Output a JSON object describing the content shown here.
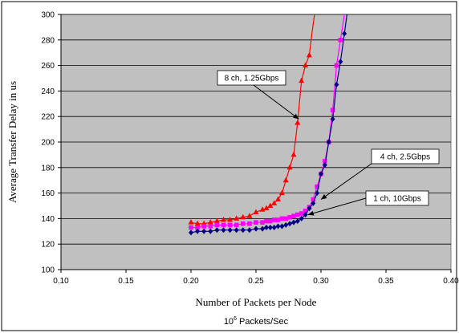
{
  "chart_data": {
    "type": "line",
    "title": "",
    "xlabel": "Number of Packets per Node",
    "ylabel": "Average Transfer Delay  in us",
    "x_units": {
      "base": "10",
      "exponent": "6",
      "rest": " Packets/Sec"
    },
    "xlim": [
      0.1,
      0.4
    ],
    "ylim": [
      100,
      300
    ],
    "x_ticks": [
      "0.10",
      "0.15",
      "0.20",
      "0.25",
      "0.30",
      "0.35",
      "0.40"
    ],
    "y_ticks": [
      "100",
      "120",
      "140",
      "160",
      "180",
      "200",
      "220",
      "240",
      "260",
      "280",
      "300"
    ],
    "grid": "horizontal",
    "plot_background": "#c0c0c0",
    "series": [
      {
        "name": "8 ch, 1.25Gbps",
        "color": "#ff0000",
        "marker": "triangle",
        "x": [
          0.2,
          0.205,
          0.21,
          0.215,
          0.22,
          0.225,
          0.23,
          0.235,
          0.24,
          0.245,
          0.25,
          0.255,
          0.258,
          0.261,
          0.264,
          0.267,
          0.27,
          0.273,
          0.276,
          0.279,
          0.282,
          0.285,
          0.288,
          0.291
        ],
        "y": [
          137,
          136,
          136,
          137,
          138,
          139,
          139,
          140,
          141,
          142,
          145,
          147,
          148,
          150,
          152,
          155,
          160,
          170,
          180,
          190,
          215,
          248,
          260,
          268
        ],
        "line_x": [
          0.2,
          0.205,
          0.21,
          0.215,
          0.22,
          0.225,
          0.23,
          0.235,
          0.24,
          0.245,
          0.25,
          0.255,
          0.258,
          0.261,
          0.264,
          0.267,
          0.27,
          0.273,
          0.276,
          0.279,
          0.282,
          0.285,
          0.288,
          0.291,
          0.293,
          0.295
        ],
        "line_y": [
          137,
          136,
          136,
          137,
          138,
          139,
          139,
          140,
          141,
          142,
          145,
          147,
          148,
          150,
          152,
          155,
          160,
          170,
          180,
          190,
          215,
          248,
          260,
          268,
          285,
          300
        ]
      },
      {
        "name": "4 ch, 2.5Gbps",
        "color": "#ff00ff",
        "marker": "square",
        "x": [
          0.2,
          0.205,
          0.21,
          0.215,
          0.22,
          0.225,
          0.23,
          0.235,
          0.24,
          0.245,
          0.25,
          0.255,
          0.258,
          0.261,
          0.264,
          0.267,
          0.27,
          0.273,
          0.276,
          0.279,
          0.282,
          0.285,
          0.288,
          0.291,
          0.294,
          0.297,
          0.3,
          0.303,
          0.306,
          0.309,
          0.312,
          0.315
        ],
        "y": [
          133,
          133,
          134,
          134,
          135,
          135,
          135,
          135,
          136,
          136,
          137,
          137,
          138,
          138,
          139,
          139,
          140,
          140,
          141,
          142,
          143,
          144,
          146,
          149,
          155,
          165,
          175,
          185,
          200,
          225,
          260,
          280
        ],
        "line_x": [
          0.2,
          0.205,
          0.21,
          0.215,
          0.22,
          0.225,
          0.23,
          0.235,
          0.24,
          0.245,
          0.25,
          0.255,
          0.258,
          0.261,
          0.264,
          0.267,
          0.27,
          0.273,
          0.276,
          0.279,
          0.282,
          0.285,
          0.288,
          0.291,
          0.294,
          0.297,
          0.3,
          0.303,
          0.306,
          0.309,
          0.312,
          0.315,
          0.318
        ],
        "line_y": [
          133,
          133,
          134,
          134,
          135,
          135,
          135,
          135,
          136,
          136,
          137,
          137,
          138,
          138,
          139,
          139,
          140,
          140,
          141,
          142,
          143,
          144,
          146,
          149,
          155,
          165,
          175,
          185,
          200,
          225,
          260,
          280,
          300
        ]
      },
      {
        "name": "1 ch, 10Gbps",
        "color": "#000080",
        "marker": "diamond",
        "x": [
          0.2,
          0.205,
          0.21,
          0.215,
          0.22,
          0.225,
          0.23,
          0.235,
          0.24,
          0.245,
          0.25,
          0.255,
          0.258,
          0.261,
          0.264,
          0.267,
          0.27,
          0.273,
          0.276,
          0.279,
          0.282,
          0.285,
          0.288,
          0.291,
          0.294,
          0.297,
          0.3,
          0.303,
          0.306,
          0.309,
          0.312,
          0.315,
          0.318
        ],
        "y": [
          129,
          130,
          130,
          130,
          131,
          131,
          131,
          131,
          131,
          131,
          132,
          132,
          133,
          133,
          133,
          134,
          134,
          135,
          136,
          137,
          138,
          140,
          143,
          148,
          152,
          160,
          175,
          182,
          200,
          218,
          245,
          263,
          285
        ],
        "line_x": [
          0.2,
          0.205,
          0.21,
          0.215,
          0.22,
          0.225,
          0.23,
          0.235,
          0.24,
          0.245,
          0.25,
          0.255,
          0.258,
          0.261,
          0.264,
          0.267,
          0.27,
          0.273,
          0.276,
          0.279,
          0.282,
          0.285,
          0.288,
          0.291,
          0.294,
          0.297,
          0.3,
          0.303,
          0.306,
          0.309,
          0.312,
          0.315,
          0.318,
          0.32
        ],
        "line_y": [
          129,
          130,
          130,
          130,
          131,
          131,
          131,
          131,
          131,
          131,
          132,
          132,
          133,
          133,
          133,
          134,
          134,
          135,
          136,
          137,
          138,
          140,
          143,
          148,
          152,
          160,
          175,
          182,
          200,
          218,
          245,
          263,
          285,
          300
        ]
      }
    ],
    "annotations": [
      {
        "text": "8 ch, 1.25Gbps",
        "points_to": [
          0.283,
          218
        ]
      },
      {
        "text": "4 ch, 2.5Gbps",
        "points_to": [
          0.3,
          155
        ]
      },
      {
        "text": "1 ch, 10Gbps",
        "points_to": [
          0.29,
          143
        ]
      }
    ]
  }
}
